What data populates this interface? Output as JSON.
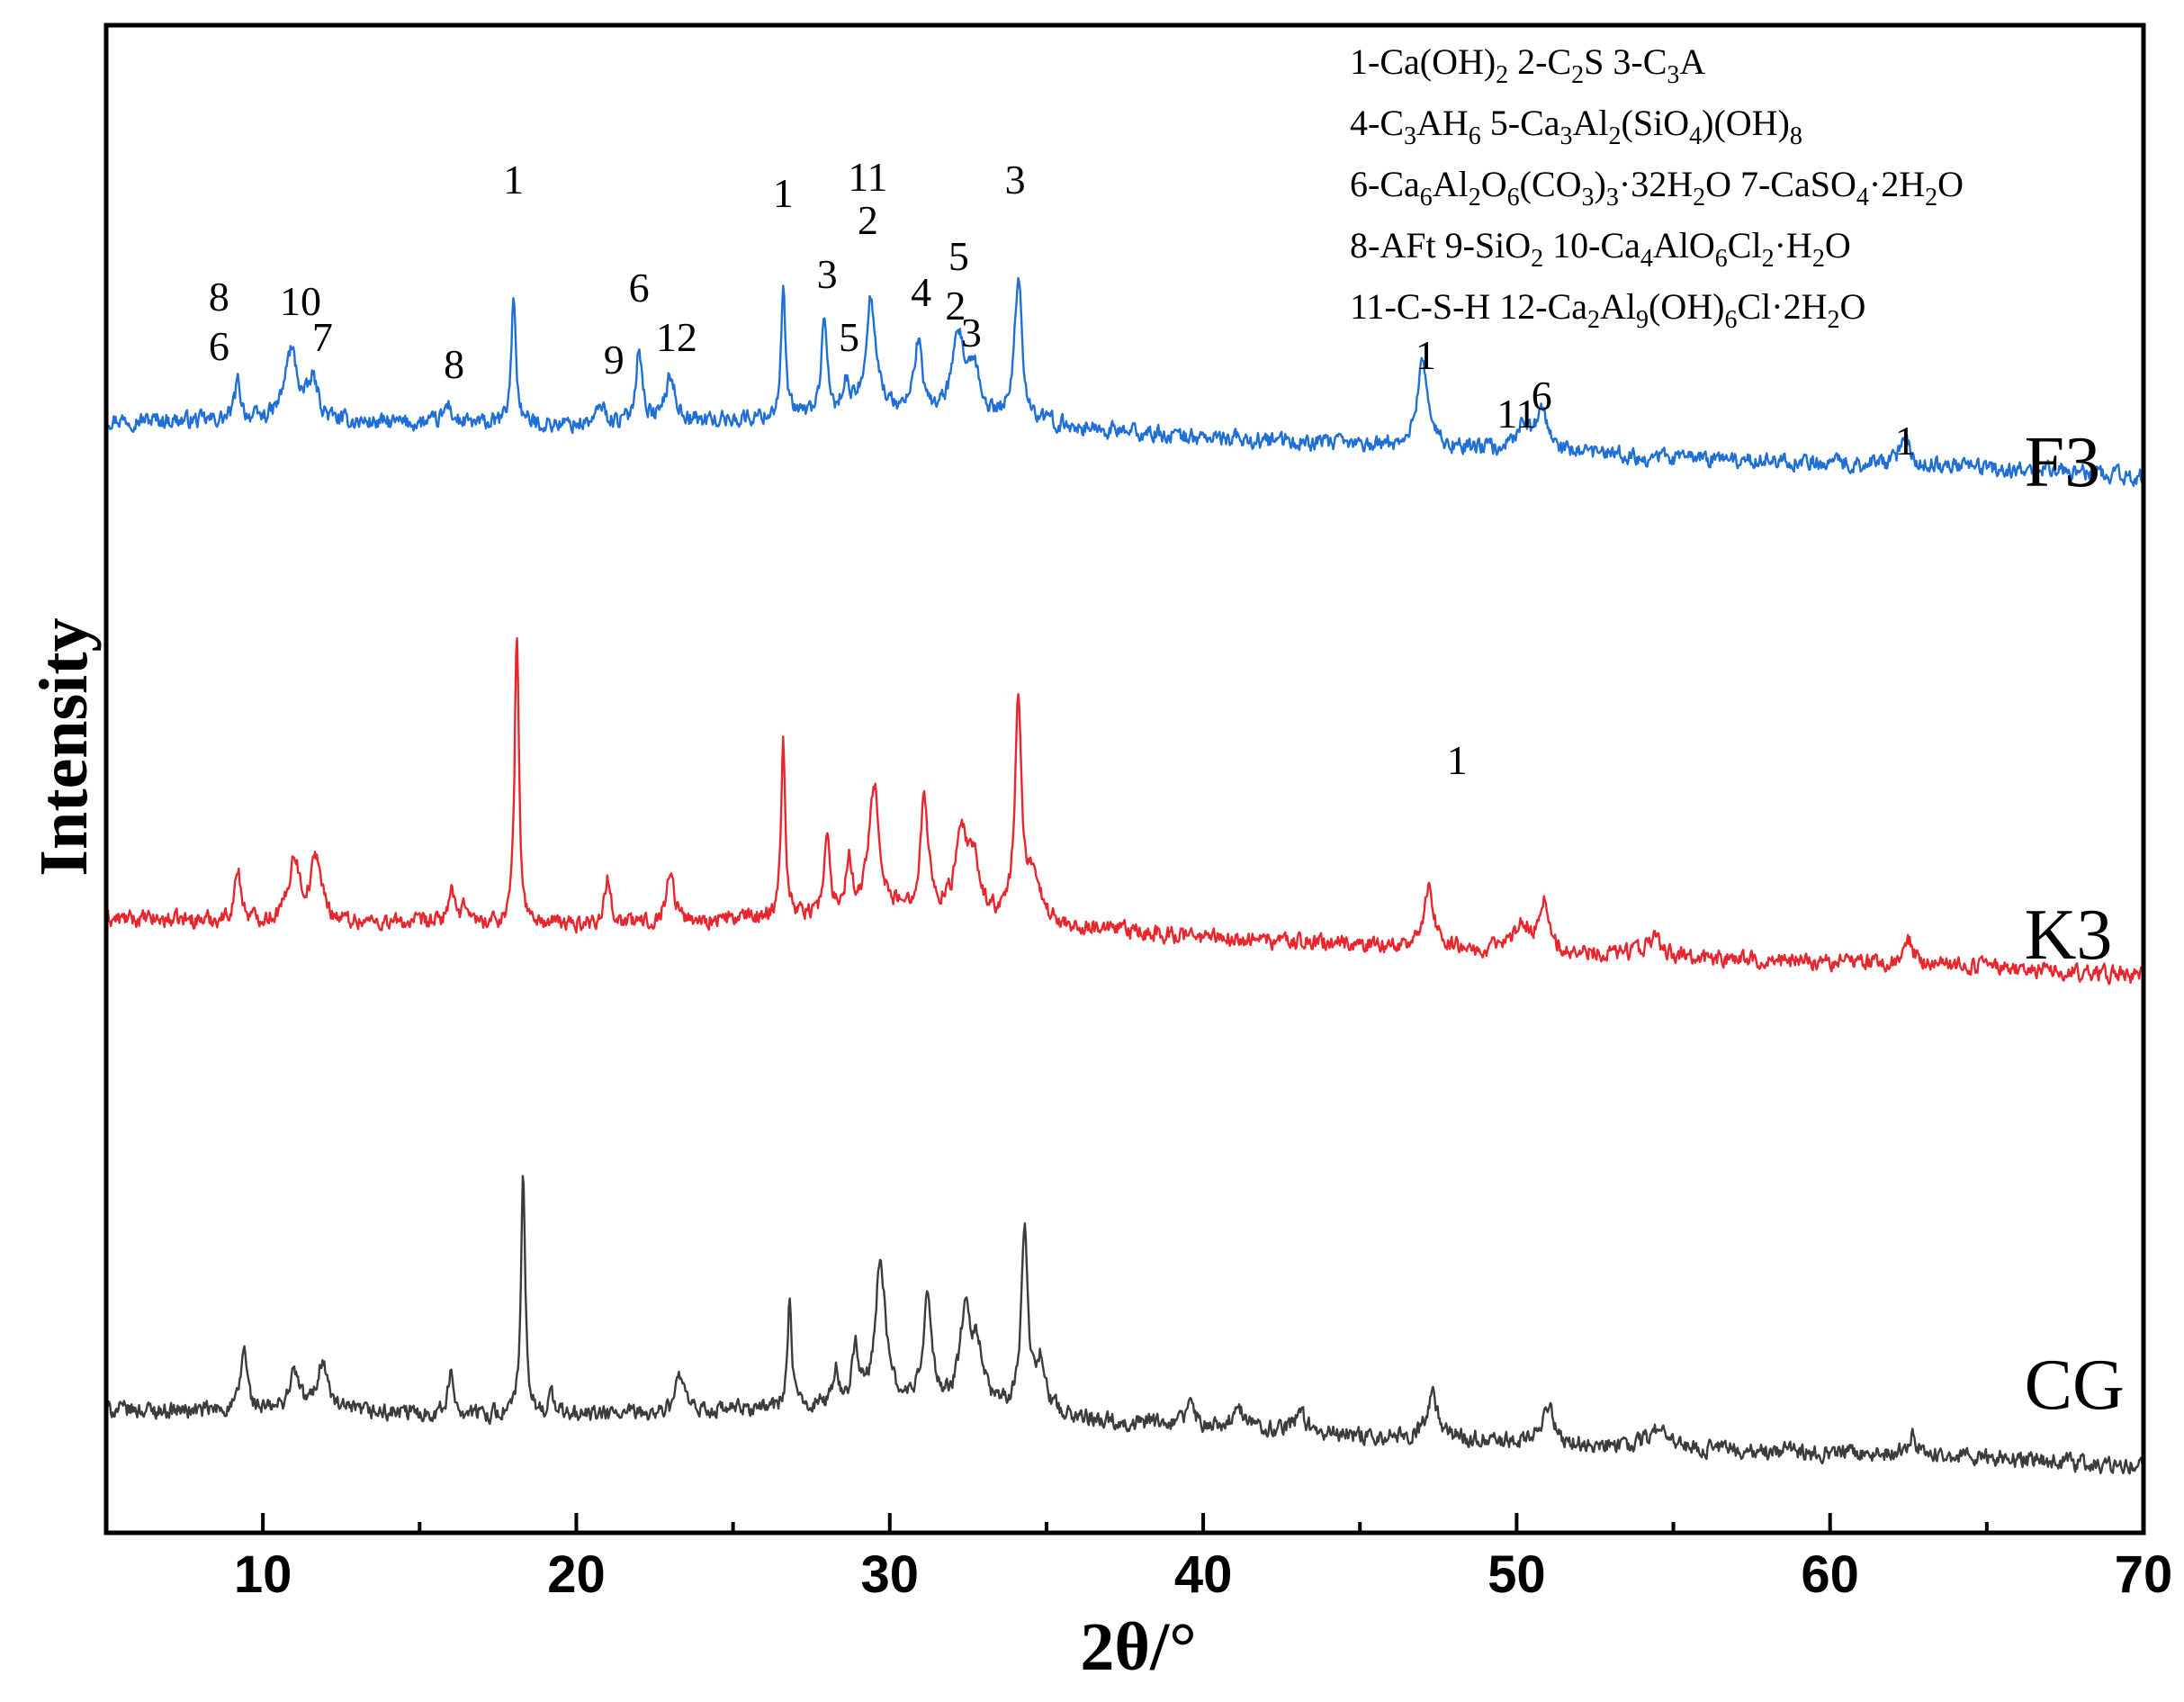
{
  "chart_data": {
    "type": "line",
    "title": "",
    "xlabel": "2θ/°",
    "ylabel": "Intensity",
    "xlim": [
      5,
      70
    ],
    "xticks": [
      10,
      20,
      30,
      40,
      50,
      60,
      70
    ],
    "grid": false,
    "series": [
      {
        "name": "F3",
        "color": "#1f6fd6",
        "baseline": [
          [
            5,
            0.09
          ],
          [
            20,
            0.08
          ],
          [
            35,
            0.07
          ],
          [
            45,
            0.05
          ],
          [
            55,
            0.03
          ],
          [
            65,
            0.015
          ],
          [
            70,
            0.0
          ]
        ],
        "peaks": [
          [
            9.2,
            0.06,
            0.12
          ],
          [
            10.9,
            0.11,
            0.25
          ],
          [
            11.6,
            0.06,
            0.2
          ],
          [
            15.9,
            0.03,
            0.15
          ],
          [
            18.0,
            0.2,
            0.09
          ],
          [
            20.8,
            0.03,
            0.15
          ],
          [
            22.0,
            0.12,
            0.12
          ],
          [
            23.0,
            0.07,
            0.2
          ],
          [
            26.6,
            0.2,
            0.08
          ],
          [
            27.9,
            0.15,
            0.1
          ],
          [
            28.6,
            0.04,
            0.12
          ],
          [
            29.4,
            0.18,
            0.2
          ],
          [
            30.9,
            0.11,
            0.15
          ],
          [
            32.2,
            0.12,
            0.25
          ],
          [
            32.7,
            0.06,
            0.2
          ],
          [
            34.1,
            0.22,
            0.15
          ],
          [
            47.0,
            0.14,
            0.2
          ],
          [
            50.2,
            0.04,
            0.3
          ],
          [
            50.8,
            0.06,
            0.2
          ],
          [
            62.4,
            0.04,
            0.2
          ]
        ]
      },
      {
        "name": "K3",
        "color": "#e8262d",
        "baseline": [
          [
            5,
            0.09
          ],
          [
            20,
            0.08
          ],
          [
            35,
            0.07
          ],
          [
            45,
            0.05
          ],
          [
            55,
            0.03
          ],
          [
            65,
            0.015
          ],
          [
            70,
            0.0
          ]
        ],
        "peaks": [
          [
            9.2,
            0.08,
            0.12
          ],
          [
            11.0,
            0.1,
            0.2
          ],
          [
            11.7,
            0.1,
            0.2
          ],
          [
            16.0,
            0.05,
            0.12
          ],
          [
            16.5,
            0.03,
            0.12
          ],
          [
            18.1,
            0.46,
            0.08
          ],
          [
            21.0,
            0.07,
            0.12
          ],
          [
            23.0,
            0.08,
            0.15
          ],
          [
            26.6,
            0.28,
            0.08
          ],
          [
            28.0,
            0.12,
            0.1
          ],
          [
            28.7,
            0.08,
            0.12
          ],
          [
            29.5,
            0.2,
            0.2
          ],
          [
            31.1,
            0.18,
            0.15
          ],
          [
            32.3,
            0.12,
            0.25
          ],
          [
            32.7,
            0.07,
            0.2
          ],
          [
            34.1,
            0.35,
            0.12
          ],
          [
            34.6,
            0.08,
            0.2
          ],
          [
            47.2,
            0.09,
            0.2
          ],
          [
            50.2,
            0.04,
            0.3
          ],
          [
            50.9,
            0.08,
            0.18
          ],
          [
            54.4,
            0.03,
            0.3
          ],
          [
            62.5,
            0.04,
            0.2
          ]
        ]
      },
      {
        "name": "CG",
        "color": "#3c3c3c",
        "baseline": [
          [
            5,
            0.09
          ],
          [
            20,
            0.08
          ],
          [
            35,
            0.07
          ],
          [
            45,
            0.05
          ],
          [
            55,
            0.03
          ],
          [
            65,
            0.015
          ],
          [
            70,
            0.0
          ]
        ],
        "peaks": [
          [
            9.4,
            0.1,
            0.12
          ],
          [
            11.0,
            0.06,
            0.2
          ],
          [
            11.9,
            0.08,
            0.2
          ],
          [
            16.0,
            0.06,
            0.12
          ],
          [
            18.3,
            0.37,
            0.08
          ],
          [
            19.2,
            0.03,
            0.12
          ],
          [
            23.3,
            0.06,
            0.15
          ],
          [
            26.8,
            0.16,
            0.08
          ],
          [
            28.3,
            0.05,
            0.1
          ],
          [
            28.9,
            0.08,
            0.12
          ],
          [
            29.7,
            0.22,
            0.2
          ],
          [
            31.2,
            0.17,
            0.15
          ],
          [
            32.4,
            0.14,
            0.2
          ],
          [
            32.8,
            0.09,
            0.2
          ],
          [
            34.3,
            0.28,
            0.12
          ],
          [
            34.8,
            0.08,
            0.2
          ],
          [
            39.6,
            0.03,
            0.2
          ],
          [
            41.2,
            0.03,
            0.3
          ],
          [
            43.1,
            0.03,
            0.2
          ],
          [
            47.3,
            0.07,
            0.2
          ],
          [
            51.0,
            0.06,
            0.2
          ],
          [
            54.5,
            0.03,
            0.3
          ],
          [
            62.6,
            0.03,
            0.2
          ]
        ]
      }
    ],
    "series_labels": [
      {
        "text": "F3",
        "x": 66.2
      },
      {
        "text": "K3",
        "x": 66.2
      },
      {
        "text": "CG",
        "x": 66.2
      }
    ],
    "peak_labels": [
      {
        "text": "8",
        "x": 8.6
      },
      {
        "text": "6",
        "x": 8.6
      },
      {
        "text": "10",
        "x": 11.2
      },
      {
        "text": "7",
        "x": 11.9
      },
      {
        "text": "8",
        "x": 16.1
      },
      {
        "text": "1",
        "x": 18.0
      },
      {
        "text": "9",
        "x": 21.2
      },
      {
        "text": "6",
        "x": 22.0
      },
      {
        "text": "12",
        "x": 23.2
      },
      {
        "text": "1",
        "x": 26.6
      },
      {
        "text": "11",
        "x": 29.3
      },
      {
        "text": "2",
        "x": 29.3
      },
      {
        "text": "3",
        "x": 28.0
      },
      {
        "text": "5",
        "x": 28.7
      },
      {
        "text": "4",
        "x": 31.0
      },
      {
        "text": "5",
        "x": 32.2
      },
      {
        "text": "2",
        "x": 32.1
      },
      {
        "text": "3",
        "x": 32.6
      },
      {
        "text": "3",
        "x": 34.0
      },
      {
        "text": "1",
        "x": 47.1
      },
      {
        "text": "11",
        "x": 50.0
      },
      {
        "text": "6",
        "x": 50.8
      },
      {
        "text": "1",
        "x": 62.4
      },
      {
        "text": "1",
        "x": 48.1
      }
    ],
    "legend_lines": [
      [
        "1-Ca(OH)",
        "2",
        " 2-C",
        "2",
        "S 3-C",
        "3",
        "A"
      ],
      [
        "4-C",
        "3",
        "AH",
        "6",
        " 5-Ca",
        "3",
        "Al",
        "2",
        "(SiO",
        "4",
        ")(OH)",
        "8"
      ],
      [
        "6-Ca",
        "6",
        "Al",
        "2",
        "O",
        "6",
        "(CO",
        "3",
        ")",
        "3",
        "·32H",
        "2",
        "O 7-CaSO",
        "4",
        "·2H",
        "2",
        "O"
      ],
      [
        "8-AFt 9-SiO",
        "2",
        " 10-Ca",
        "4",
        "AlO",
        "6",
        "Cl",
        "2",
        "·H",
        "2",
        "O"
      ],
      [
        "11-C-S-H 12-Ca",
        "2",
        "Al",
        "9",
        "(OH)",
        "6",
        "Cl·2H",
        "2",
        "O"
      ]
    ]
  }
}
